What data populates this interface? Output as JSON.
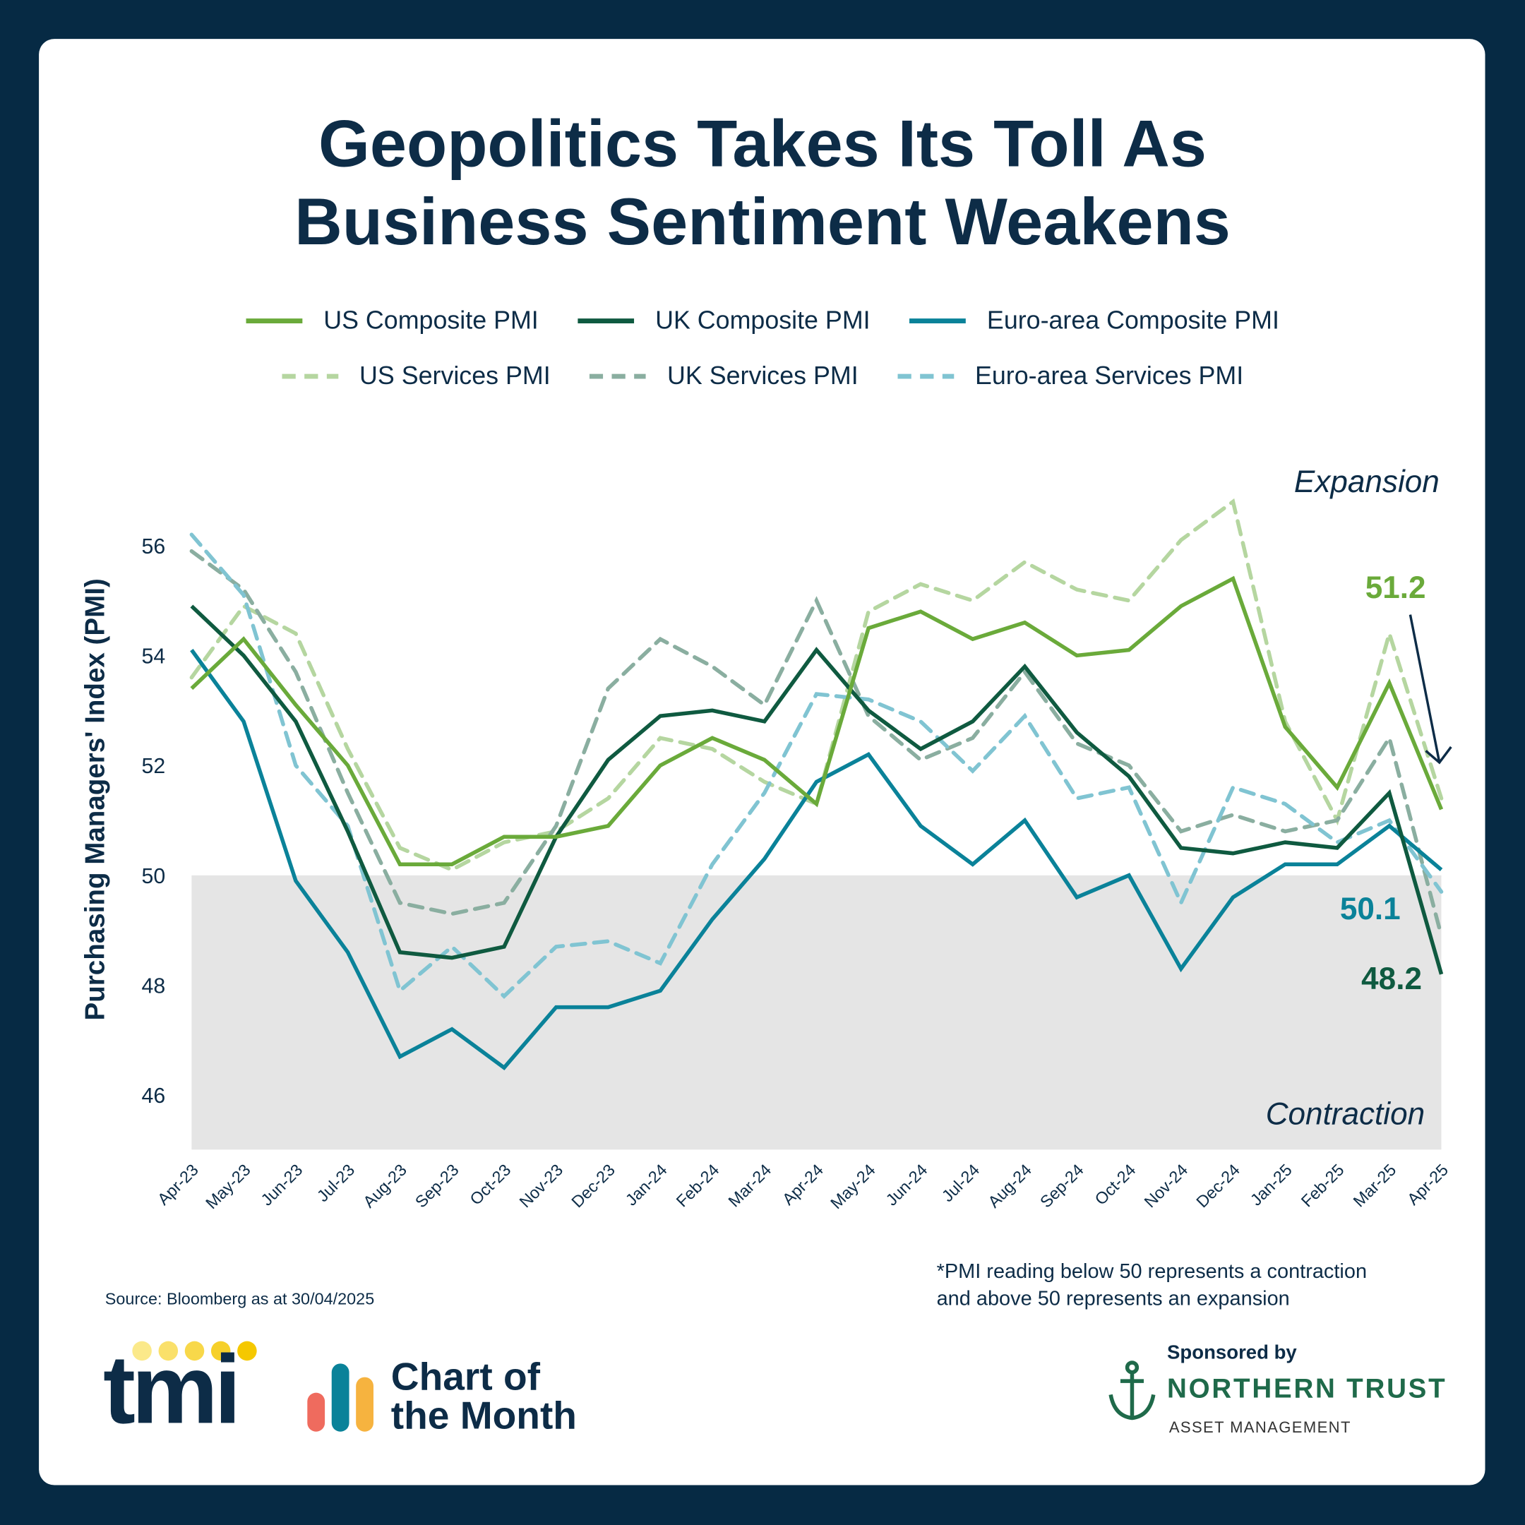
{
  "title_line1": "Geopolitics Takes Its Toll As",
  "title_line2": "Business Sentiment Weakens",
  "source": "Source: Bloomberg as at 30/04/2025",
  "footnote_line1": "*PMI reading below 50 represents a contraction",
  "footnote_line2": "and above 50 represents an expansion",
  "branding": {
    "tmi_logo": "tmi",
    "chart_of_month_line1": "Chart of",
    "chart_of_month_line2": "the Month",
    "sponsored_by": "Sponsored by",
    "sponsor_name": "NORTHERN TRUST",
    "sponsor_sub": "ASSET MANAGEMENT"
  },
  "chart_data": {
    "type": "line",
    "ylabel": "Purchasing Managers' Index (PMI)",
    "xlabel": "",
    "ylim": [
      45,
      57
    ],
    "yticks": [
      46,
      48,
      50,
      52,
      54,
      56
    ],
    "grid": false,
    "legend_position": "top",
    "threshold": 50,
    "region_labels": {
      "above": "Expansion",
      "below": "Contraction"
    },
    "categories": [
      "Apr-23",
      "May-23",
      "Jun-23",
      "Jul-23",
      "Aug-23",
      "Sep-23",
      "Oct-23",
      "Nov-23",
      "Dec-23",
      "Jan-24",
      "Feb-24",
      "Mar-24",
      "Apr-24",
      "May-24",
      "Jun-24",
      "Jul-24",
      "Aug-24",
      "Sep-24",
      "Oct-24",
      "Nov-24",
      "Dec-24",
      "Jan-25",
      "Feb-25",
      "Mar-25",
      "Apr-25"
    ],
    "series": [
      {
        "name": "US Composite PMI",
        "color": "#6aaa3a",
        "dashed": false,
        "values": [
          53.4,
          54.3,
          53.1,
          52.0,
          50.2,
          50.2,
          50.7,
          50.7,
          50.9,
          52.0,
          52.5,
          52.1,
          51.3,
          54.5,
          54.8,
          54.3,
          54.6,
          54.0,
          54.1,
          54.9,
          55.4,
          52.7,
          51.6,
          53.5,
          51.2
        ]
      },
      {
        "name": "UK Composite PMI",
        "color": "#0f5a40",
        "dashed": false,
        "values": [
          54.9,
          54.0,
          52.8,
          50.8,
          48.6,
          48.5,
          48.7,
          50.7,
          52.1,
          52.9,
          53.0,
          52.8,
          54.1,
          53.0,
          52.3,
          52.8,
          53.8,
          52.6,
          51.8,
          50.5,
          50.4,
          50.6,
          50.5,
          51.5,
          48.2
        ]
      },
      {
        "name": "Euro-area Composite PMI",
        "color": "#0a8299",
        "dashed": false,
        "values": [
          54.1,
          52.8,
          49.9,
          48.6,
          46.7,
          47.2,
          46.5,
          47.6,
          47.6,
          47.9,
          49.2,
          50.3,
          51.7,
          52.2,
          50.9,
          50.2,
          51.0,
          49.6,
          50.0,
          48.3,
          49.6,
          50.2,
          50.2,
          50.9,
          50.1
        ]
      },
      {
        "name": "US Services PMI",
        "color": "#b5d6a0",
        "dashed": true,
        "values": [
          53.6,
          54.9,
          54.4,
          52.3,
          50.5,
          50.1,
          50.6,
          50.8,
          51.4,
          52.5,
          52.3,
          51.7,
          51.3,
          54.8,
          55.3,
          55.0,
          55.7,
          55.2,
          55.0,
          56.1,
          56.8,
          52.8,
          51.0,
          54.4,
          51.4
        ]
      },
      {
        "name": "UK Services PMI",
        "color": "#8aaea0",
        "dashed": true,
        "values": [
          55.9,
          55.2,
          53.7,
          51.5,
          49.5,
          49.3,
          49.5,
          50.9,
          53.4,
          54.3,
          53.8,
          53.1,
          55.0,
          52.9,
          52.1,
          52.5,
          53.7,
          52.4,
          52.0,
          50.8,
          51.1,
          50.8,
          51.0,
          52.5,
          48.9
        ]
      },
      {
        "name": "Euro-area Services PMI",
        "color": "#80c4d2",
        "dashed": true,
        "values": [
          56.2,
          55.1,
          52.0,
          50.9,
          47.9,
          48.7,
          47.8,
          48.7,
          48.8,
          48.4,
          50.2,
          51.5,
          53.3,
          53.2,
          52.8,
          51.9,
          52.9,
          51.4,
          51.6,
          49.5,
          51.6,
          51.3,
          50.6,
          51.0,
          49.7
        ]
      }
    ],
    "annotations": [
      {
        "text": "51.2",
        "color": "#6aaa3a"
      },
      {
        "text": "50.1",
        "color": "#0a8299"
      },
      {
        "text": "48.2",
        "color": "#0f5a40"
      }
    ]
  }
}
